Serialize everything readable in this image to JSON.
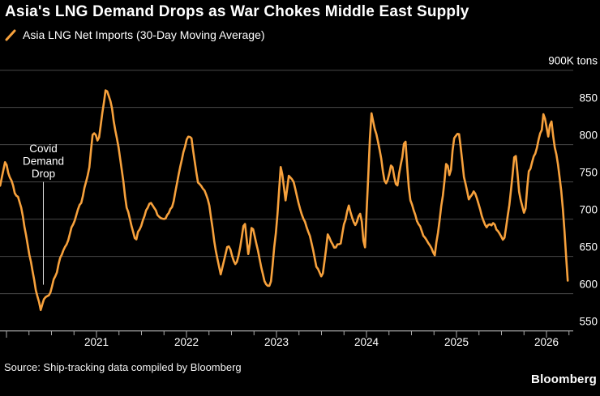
{
  "header": {
    "title": "Asia's LNG Demand Drops as War Chokes Middle East Supply",
    "legend": {
      "marker_icon": "diagonal-line-marker",
      "label": "Asia LNG Net Imports (30-Day Moving Average)"
    }
  },
  "footer": {
    "source": "Source: Ship-tracking data compiled by Bloomberg",
    "logo": "Bloomberg"
  },
  "colors": {
    "background": "#000000",
    "line": "#F7A13C",
    "grid": "#484848",
    "axis": "#AAAAAA",
    "text": "#FFFFFF",
    "annotation_line": "#DDDDDD"
  },
  "chart_data": {
    "type": "line",
    "title": "Asia's LNG Demand Drops as War Chokes Middle East Supply",
    "series_name": "Asia LNG Net Imports (30-Day Moving Average)",
    "unit": "K tons",
    "ylim": [
      550,
      900
    ],
    "yticks": [
      550,
      600,
      650,
      700,
      750,
      800,
      850,
      900
    ],
    "ytick_top_label": "900K tons",
    "x_year_ticks": [
      2021,
      2022,
      2023,
      2024,
      2025,
      2026
    ],
    "x_minor_tick_interval_years": 0.25,
    "x_range": [
      2019.93,
      2026.25
    ],
    "grid": true,
    "legend_position": "top-left",
    "annotation": {
      "lines": [
        "Covid",
        "Demand",
        "Drop"
      ],
      "x": 2020.41,
      "line_top_value": 750,
      "line_bottom_value": 612
    },
    "points": [
      [
        2019.93,
        745
      ],
      [
        2019.99,
        778
      ],
      [
        2020.08,
        742
      ],
      [
        2020.17,
        712
      ],
      [
        2020.25,
        658
      ],
      [
        2020.33,
        603
      ],
      [
        2020.38,
        582
      ],
      [
        2020.44,
        594
      ],
      [
        2020.5,
        607
      ],
      [
        2020.59,
        643
      ],
      [
        2020.67,
        666
      ],
      [
        2020.75,
        697
      ],
      [
        2020.84,
        727
      ],
      [
        2020.92,
        768
      ],
      [
        2020.96,
        820
      ],
      [
        2021.02,
        800
      ],
      [
        2021.1,
        873
      ],
      [
        2021.17,
        852
      ],
      [
        2021.25,
        792
      ],
      [
        2021.33,
        718
      ],
      [
        2021.44,
        672
      ],
      [
        2021.52,
        700
      ],
      [
        2021.59,
        722
      ],
      [
        2021.67,
        708
      ],
      [
        2021.76,
        696
      ],
      [
        2021.84,
        716
      ],
      [
        2021.92,
        762
      ],
      [
        2022.0,
        806
      ],
      [
        2022.05,
        812
      ],
      [
        2022.12,
        754
      ],
      [
        2022.2,
        736
      ],
      [
        2022.25,
        722
      ],
      [
        2022.33,
        655
      ],
      [
        2022.38,
        624
      ],
      [
        2022.46,
        668
      ],
      [
        2022.55,
        636
      ],
      [
        2022.6,
        668
      ],
      [
        2022.645,
        700
      ],
      [
        2022.69,
        648
      ],
      [
        2022.73,
        696
      ],
      [
        2022.79,
        660
      ],
      [
        2022.86,
        618
      ],
      [
        2022.93,
        606
      ],
      [
        2023.0,
        690
      ],
      [
        2023.05,
        777
      ],
      [
        2023.1,
        720
      ],
      [
        2023.14,
        765
      ],
      [
        2023.22,
        738
      ],
      [
        2023.3,
        700
      ],
      [
        2023.38,
        678
      ],
      [
        2023.44,
        640
      ],
      [
        2023.51,
        618
      ],
      [
        2023.57,
        678
      ],
      [
        2023.64,
        662
      ],
      [
        2023.71,
        668
      ],
      [
        2023.8,
        718
      ],
      [
        2023.87,
        692
      ],
      [
        2023.94,
        710
      ],
      [
        2023.98,
        655
      ],
      [
        2024.02,
        760
      ],
      [
        2024.05,
        845
      ],
      [
        2024.13,
        800
      ],
      [
        2024.16,
        785
      ],
      [
        2024.21,
        744
      ],
      [
        2024.28,
        775
      ],
      [
        2024.34,
        740
      ],
      [
        2024.43,
        812
      ],
      [
        2024.48,
        726
      ],
      [
        2024.54,
        708
      ],
      [
        2024.59,
        690
      ],
      [
        2024.67,
        672
      ],
      [
        2024.76,
        653
      ],
      [
        2024.84,
        722
      ],
      [
        2024.89,
        776
      ],
      [
        2024.93,
        752
      ],
      [
        2024.97,
        808
      ],
      [
        2025.03,
        814
      ],
      [
        2025.08,
        760
      ],
      [
        2025.14,
        726
      ],
      [
        2025.19,
        740
      ],
      [
        2025.25,
        718
      ],
      [
        2025.33,
        692
      ],
      [
        2025.42,
        695
      ],
      [
        2025.48,
        678
      ],
      [
        2025.54,
        676
      ],
      [
        2025.59,
        718
      ],
      [
        2025.65,
        797
      ],
      [
        2025.7,
        732
      ],
      [
        2025.76,
        703
      ],
      [
        2025.8,
        760
      ],
      [
        2025.85,
        782
      ],
      [
        2025.9,
        800
      ],
      [
        2025.95,
        822
      ],
      [
        2025.97,
        850
      ],
      [
        2026.02,
        810
      ],
      [
        2026.05,
        836
      ],
      [
        2026.09,
        800
      ],
      [
        2026.13,
        772
      ],
      [
        2026.16,
        748
      ],
      [
        2026.19,
        705
      ],
      [
        2026.22,
        650
      ],
      [
        2026.25,
        590
      ]
    ]
  }
}
